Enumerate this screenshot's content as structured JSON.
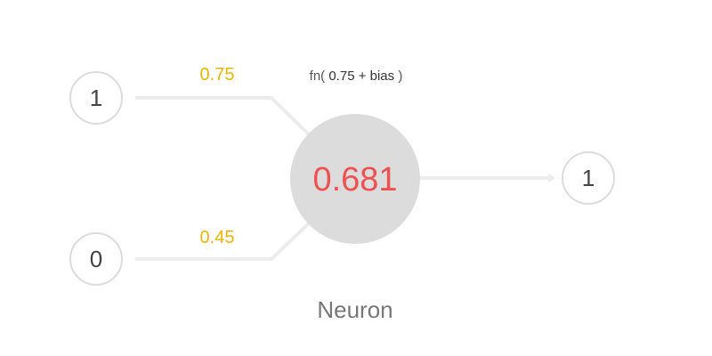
{
  "inputs": [
    {
      "value": "1",
      "weight": "0.75"
    },
    {
      "value": "0",
      "weight": "0.45"
    }
  ],
  "neuron": {
    "label": "Neuron",
    "value": "0.681",
    "formula": {
      "fn": "fn(",
      "expr": "0.75 + bias",
      "close": ")"
    }
  },
  "output": {
    "value": "1"
  },
  "colors": {
    "weight": "#f0b400",
    "neuron_value": "#f05050",
    "edge": "#ececec",
    "node_border": "#dcdcdc",
    "neuron_fill": "#dcdcdc"
  }
}
